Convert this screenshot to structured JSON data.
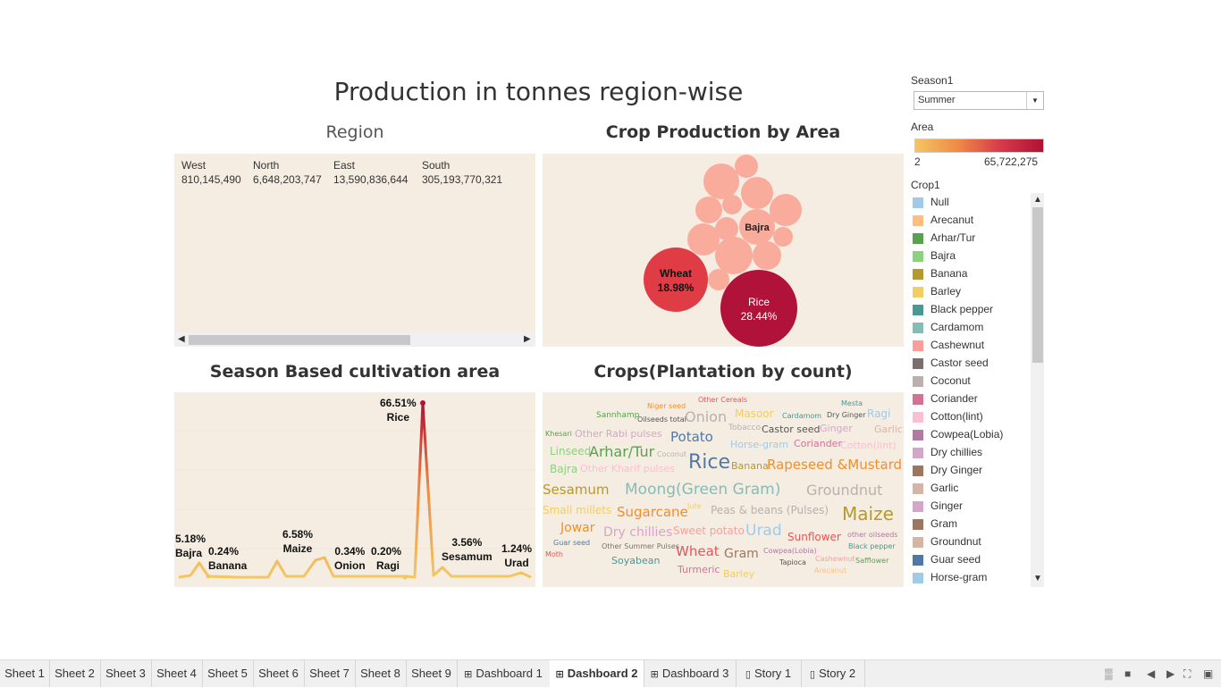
{
  "dashboard_title": "Production in tonnes region-wise",
  "region": {
    "title": "Region",
    "columns": [
      {
        "name": "West",
        "value": "810,145,490"
      },
      {
        "name": "North",
        "value": "6,648,203,747"
      },
      {
        "name": "East",
        "value": "13,590,836,644"
      },
      {
        "name": "South",
        "value": "305,193,770,321"
      }
    ]
  },
  "bubble": {
    "title": "Crop Production by Area",
    "labels": {
      "bajra": "Bajra",
      "wheat": "Wheat",
      "wheat_pct": "18.98%",
      "rice": "Rice",
      "rice_pct": "28.44%"
    }
  },
  "season": {
    "title": "Season Based cultivation area",
    "labels": [
      {
        "pct": "5.18%",
        "crop": "Bajra"
      },
      {
        "pct": "0.24%",
        "crop": "Banana"
      },
      {
        "pct": "6.58%",
        "crop": "Maize"
      },
      {
        "pct": "0.34%",
        "crop": "Onion"
      },
      {
        "pct": "0.20%",
        "crop": "Ragi"
      },
      {
        "pct": "66.51%",
        "crop": "Rice"
      },
      {
        "pct": "3.56%",
        "crop": "Sesamum"
      },
      {
        "pct": "1.24%",
        "crop": "Urad"
      }
    ]
  },
  "words": {
    "title": "Crops(Plantation by count)",
    "items": [
      "Niger seed",
      "Other Cereals",
      "Mesta",
      "Sannhamp",
      "Oilseeds total",
      "Onion",
      "Masoor",
      "Cardamom",
      "Dry Ginger",
      "Ragi",
      "Tobacco",
      "Castor seed",
      "Ginger",
      "Garlic",
      "Khesari",
      "Other Rabi pulses",
      "Potato",
      "Horse-gram",
      "Coriander",
      "Cotton(lint)",
      "Linseed",
      "Arhar/Tur",
      "Coconut",
      "Rice",
      "Banana",
      "Rapeseed &Mustard",
      "Bajra",
      "Other Kharif pulses",
      "Sesamum",
      "Moong(Green Gram)",
      "Groundnut",
      "Small millets",
      "Sugarcane",
      "Jute",
      "Peas & beans (Pulses)",
      "Maize",
      "Jowar",
      "Dry chillies",
      "Sweet potato",
      "Urad",
      "Sunflower",
      "other oilseeds",
      "Guar seed",
      "Other Summer Pulses",
      "Wheat",
      "Gram",
      "Cowpea(Lobia)",
      "Black pepper",
      "Moth",
      "Cashewnut",
      "Soyabean",
      "Tapioca",
      "Safflower",
      "Turmeric",
      "Barley",
      "Arecanut"
    ]
  },
  "filters": {
    "season_label": "Season1",
    "season_value": "Summer",
    "area_label": "Area",
    "area_min": "2",
    "area_max": "65,722,275",
    "crop_label": "Crop1",
    "crops": [
      {
        "name": "Null",
        "color": "#a0cbe8"
      },
      {
        "name": "Arecanut",
        "color": "#ffbe7d"
      },
      {
        "name": "Arhar/Tur",
        "color": "#59a14f"
      },
      {
        "name": "Bajra",
        "color": "#8cd17d"
      },
      {
        "name": "Banana",
        "color": "#b6992d"
      },
      {
        "name": "Barley",
        "color": "#f1ce63"
      },
      {
        "name": "Black pepper",
        "color": "#499894"
      },
      {
        "name": "Cardamom",
        "color": "#86bcb6"
      },
      {
        "name": "Cashewnut",
        "color": "#ff9d9a"
      },
      {
        "name": "Castor seed",
        "color": "#79706e"
      },
      {
        "name": "Coconut",
        "color": "#bab0ac"
      },
      {
        "name": "Coriander",
        "color": "#d37295"
      },
      {
        "name": "Cotton(lint)",
        "color": "#fabfd2"
      },
      {
        "name": "Cowpea(Lobia)",
        "color": "#b07aa1"
      },
      {
        "name": "Dry chillies",
        "color": "#d4a6c8"
      },
      {
        "name": "Dry Ginger",
        "color": "#9d7660"
      },
      {
        "name": "Garlic",
        "color": "#d7b5a6"
      },
      {
        "name": "Ginger",
        "color": "#d4a6c8"
      },
      {
        "name": "Gram",
        "color": "#9d7660"
      },
      {
        "name": "Groundnut",
        "color": "#d7b5a6"
      },
      {
        "name": "Guar seed",
        "color": "#4e79a7"
      },
      {
        "name": "Horse-gram",
        "color": "#a0cbe8"
      }
    ]
  },
  "tabs": [
    {
      "label": "Sheet 1"
    },
    {
      "label": "Sheet 2"
    },
    {
      "label": "Sheet 3"
    },
    {
      "label": "Sheet 4"
    },
    {
      "label": "Sheet 5"
    },
    {
      "label": "Sheet 6"
    },
    {
      "label": "Sheet 7"
    },
    {
      "label": "Sheet 8"
    },
    {
      "label": "Sheet 9"
    },
    {
      "label": "Dashboard 1"
    },
    {
      "label": "Dashboard 2"
    },
    {
      "label": "Dashboard 3"
    },
    {
      "label": "Story 1"
    },
    {
      "label": "Story 2"
    }
  ]
}
